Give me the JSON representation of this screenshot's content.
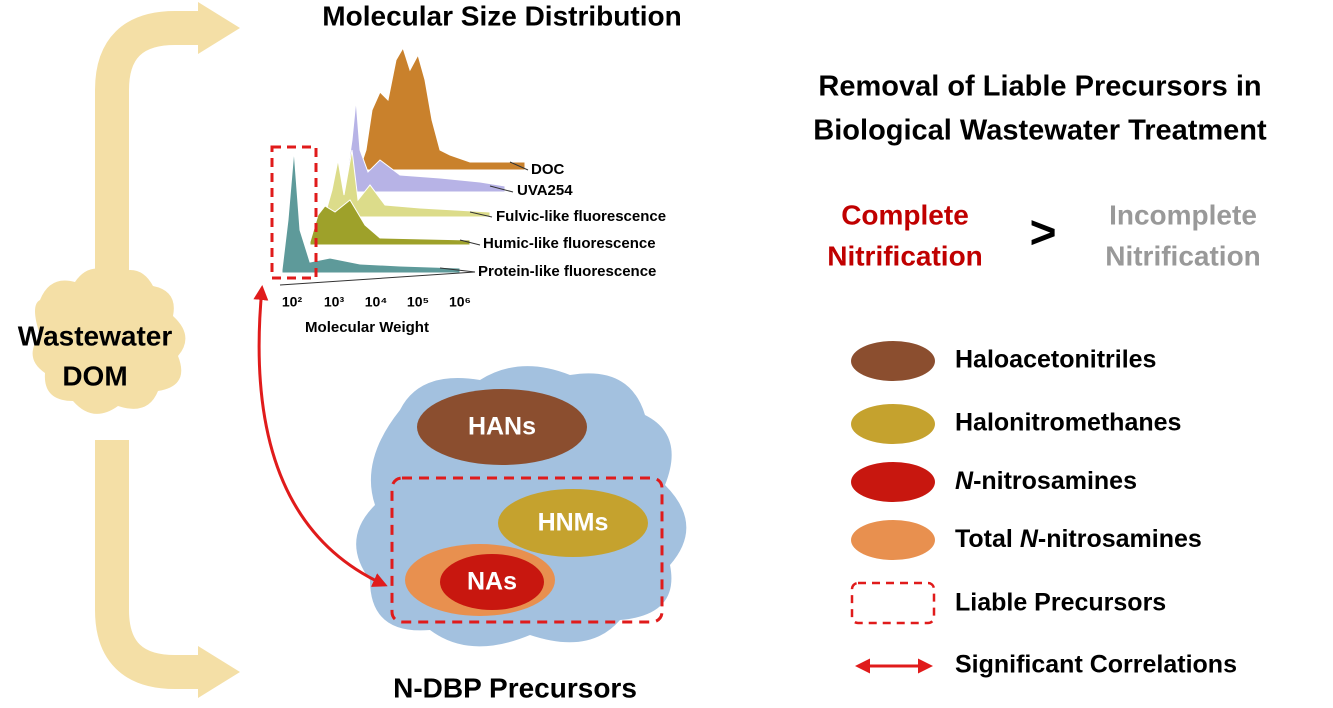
{
  "source": {
    "label": [
      "Wastewater",
      "DOM"
    ]
  },
  "msd": {
    "title": "Molecular Size Distribution",
    "series_labels": [
      "DOC",
      "UVA254",
      "Fulvic-like fluorescence",
      "Humic-like fluorescence",
      "Protein-like fluorescence"
    ],
    "x_ticks": [
      "10²",
      "10³",
      "10⁴",
      "10⁵",
      "10⁶"
    ],
    "x_label": "Molecular Weight"
  },
  "heading": [
    "Removal of Liable Precursors in",
    "Biological Wastewater Treatment"
  ],
  "comparison": {
    "left": [
      "Complete",
      "Nitrification"
    ],
    "operator": ">",
    "right": [
      "Incomplete",
      "Nitrification"
    ]
  },
  "precursors": {
    "title": "N-DBP Precursors",
    "nodes": [
      "HANs",
      "HNMs",
      "NAs"
    ]
  },
  "legend": [
    {
      "text": "Haloacetonitriles"
    },
    {
      "text": "Halonitromethanes"
    },
    {
      "italic": "N",
      "text": "-nitrosamines"
    },
    {
      "prefix": "Total ",
      "italic": "N",
      "text": "-nitrosamines"
    },
    {
      "text": "Liable Precursors"
    },
    {
      "text": "Significant Correlations"
    }
  ]
}
